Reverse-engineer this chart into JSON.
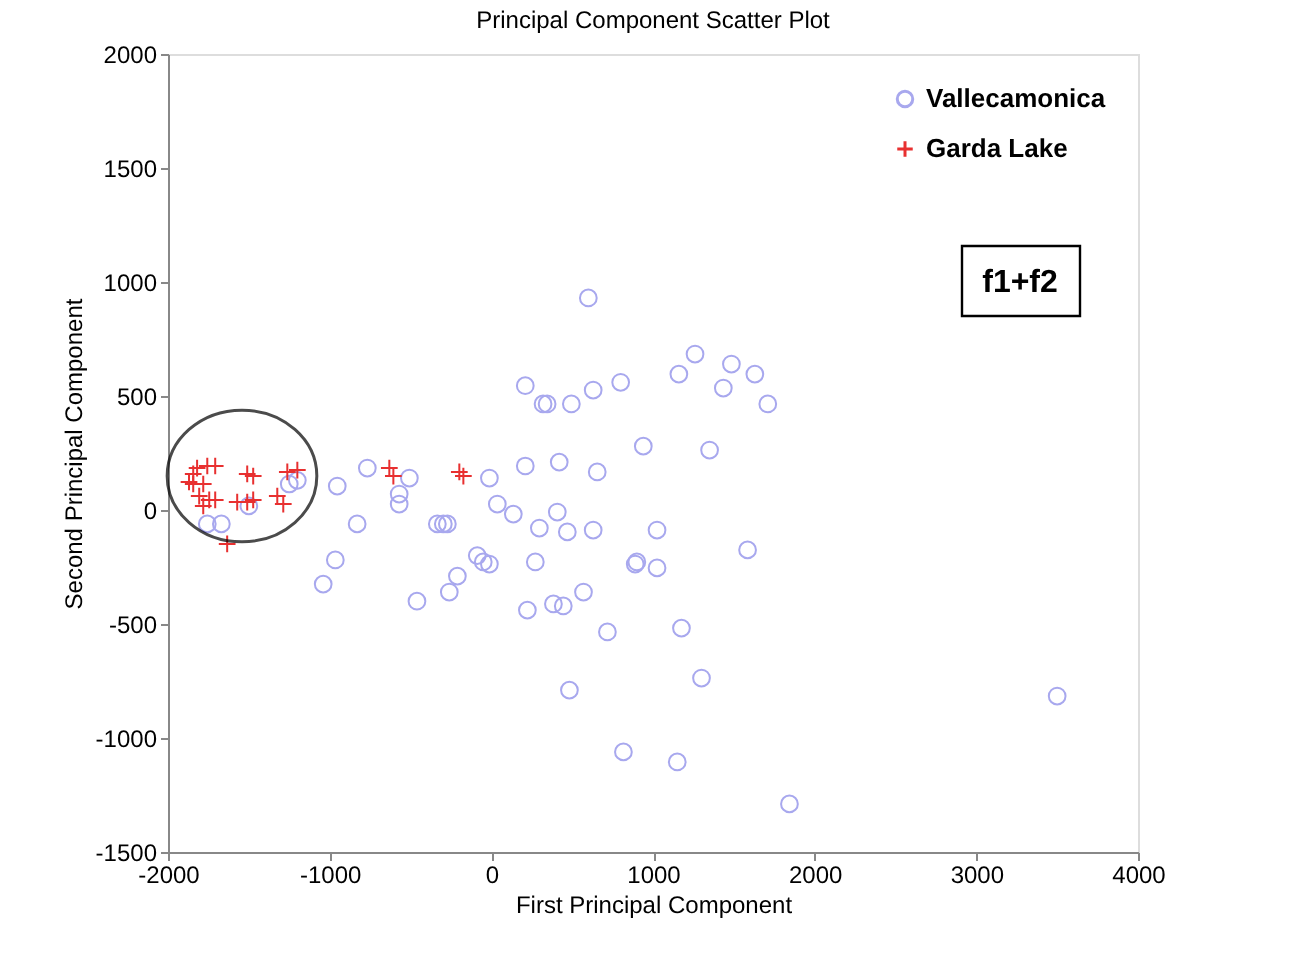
{
  "chart_data": {
    "type": "scatter",
    "title": "Principal Component Scatter Plot",
    "xlabel": "First Principal Component",
    "ylabel": "Second Principal Component",
    "xlim": [
      -2000,
      4000
    ],
    "xticks": [
      -2000,
      -1000,
      0,
      1000,
      2000,
      3000,
      4000
    ],
    "ylim": [
      -1500,
      2000
    ],
    "yticks": [
      -1500,
      -1000,
      -500,
      0,
      500,
      1000,
      1500,
      2000
    ],
    "grid": false,
    "legend": "top right",
    "annotations": [
      "f1+f2"
    ],
    "series": [
      {
        "name": "Vallecamonica",
        "color": "#a8a8ee",
        "marker": "circle",
        "x": [
          600,
          210,
          320,
          345,
          495,
          630,
          800,
          1260,
          1160,
          1485,
          1435,
          1630,
          1710,
          940,
          1350,
          210,
          420,
          655,
          -12,
          37,
          136,
          408,
          297,
          470,
          630,
          1025,
          1585,
          272,
          -87,
          -50,
          -12,
          -272,
          -210,
          -260,
          -460,
          890,
          1025,
          384,
          445,
          570,
          223,
          718,
          1176,
          1300,
          483,
          817,
          1150,
          1844,
          3500,
          -767,
          -507,
          -953,
          -570,
          -570,
          -1200,
          -830,
          -965,
          -1040,
          -334,
          -297,
          -1757,
          -1670,
          -1500,
          -1250,
          900
        ],
        "values": [
          930,
          545,
          465,
          465,
          465,
          526,
          560,
          684,
          596,
          640,
          535,
          596,
          465,
          280,
          263,
          193,
          210,
          167,
          140,
          26,
          -18,
          -9,
          -79,
          -96,
          -88,
          -88,
          -175,
          -228,
          -200,
          -228,
          -237,
          -61,
          -290,
          -360,
          -400,
          -237,
          -254,
          -412,
          -421,
          -360,
          -439,
          -535,
          -518,
          -737,
          -790,
          -1061,
          -1105,
          -1289,
          -816,
          184,
          140,
          105,
          70,
          26,
          130,
          -61,
          -219,
          -325,
          -61,
          -61,
          -61,
          -61,
          18,
          114,
          -228
        ]
      },
      {
        "name": "Garda Lake",
        "color": "#e83030",
        "marker": "cross",
        "x": [
          -1844,
          -1870,
          -1820,
          -1757,
          -1708,
          -1844,
          -1807,
          -1745,
          -1708,
          -1510,
          -1473,
          -1572,
          -1510,
          -1473,
          -1262,
          -1200,
          -1324,
          -1287,
          -1634,
          -631,
          -606,
          -198,
          -173,
          -1782,
          -1782
        ],
        "values": [
          158,
          123,
          184,
          193,
          193,
          114,
          61,
          44,
          44,
          158,
          149,
          35,
          35,
          44,
          167,
          175,
          61,
          26,
          -149,
          184,
          149,
          167,
          149,
          18,
          114
        ]
      }
    ]
  }
}
